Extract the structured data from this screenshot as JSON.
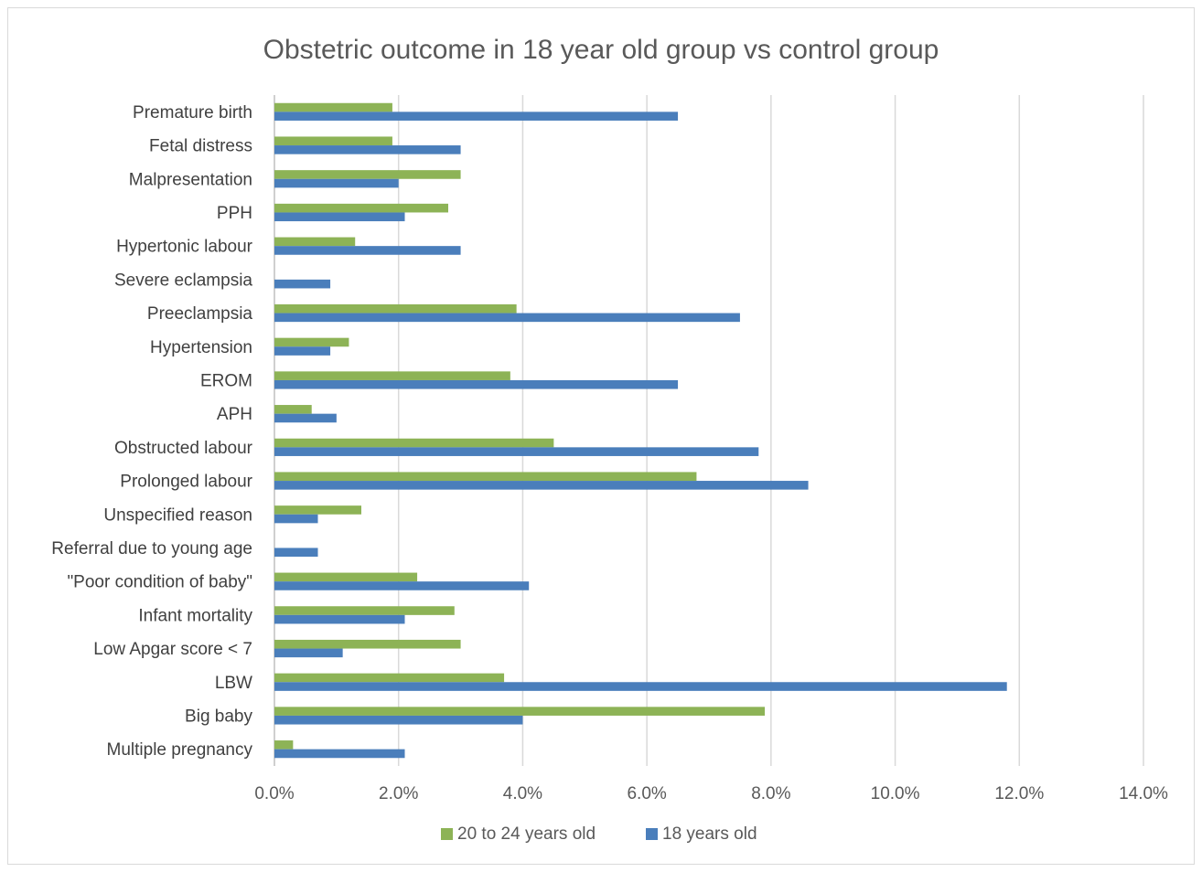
{
  "chart_data": {
    "type": "bar",
    "orientation": "horizontal",
    "title": "Obstetric outcome in 18 year old group vs control group",
    "xlabel": "",
    "ylabel": "",
    "xlim": [
      0,
      14
    ],
    "ticks": [
      "0.0%",
      "2.0%",
      "4.0%",
      "6.0%",
      "8.0%",
      "10.0%",
      "12.0%",
      "14.0%"
    ],
    "tick_values": [
      0,
      2,
      4,
      6,
      8,
      10,
      12,
      14
    ],
    "grid": true,
    "legend_position": "bottom",
    "categories": [
      "Premature birth",
      "Fetal distress",
      "Malpresentation",
      "PPH",
      "Hypertonic labour",
      "Severe eclampsia",
      "Preeclampsia",
      "Hypertension",
      "EROM",
      "APH",
      "Obstructed labour",
      "Prolonged labour",
      "Unspecified reason",
      "Referral due to young age",
      "\"Poor condition of baby\"",
      "Infant mortality",
      "Low Apgar score < 7",
      "LBW",
      "Big baby",
      "Multiple pregnancy"
    ],
    "series": [
      {
        "name": "20 to 24 years old",
        "color": "#8db356",
        "values": [
          1.9,
          1.9,
          3.0,
          2.8,
          1.3,
          0.0,
          3.9,
          1.2,
          3.8,
          0.6,
          4.5,
          6.8,
          1.4,
          0.0,
          2.3,
          2.9,
          3.0,
          3.7,
          7.9,
          0.3
        ]
      },
      {
        "name": "18 years old",
        "color": "#4a7ebb",
        "values": [
          6.5,
          3.0,
          2.0,
          2.1,
          3.0,
          0.9,
          7.5,
          0.9,
          6.5,
          1.0,
          7.8,
          8.6,
          0.7,
          0.7,
          4.1,
          2.1,
          1.1,
          11.8,
          4.0,
          2.1
        ]
      }
    ]
  }
}
